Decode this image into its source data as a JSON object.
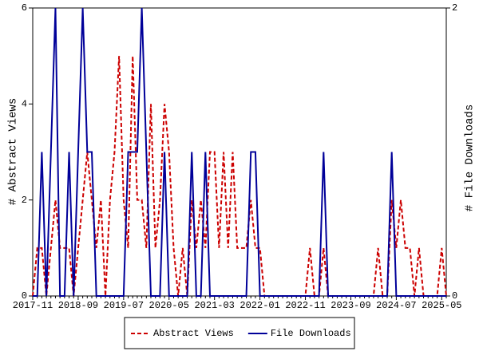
{
  "chart_data": {
    "type": "line",
    "categories": [
      "2017-11",
      null,
      null,
      null,
      null,
      null,
      null,
      null,
      null,
      null,
      "2018-09",
      null,
      null,
      null,
      null,
      null,
      null,
      null,
      null,
      null,
      "2019-07",
      null,
      null,
      null,
      null,
      null,
      null,
      null,
      null,
      null,
      "2020-05",
      null,
      null,
      null,
      null,
      null,
      null,
      null,
      null,
      null,
      "2021-03",
      null,
      null,
      null,
      null,
      null,
      null,
      null,
      null,
      null,
      "2022-01",
      null,
      null,
      null,
      null,
      null,
      null,
      null,
      null,
      null,
      "2022-11",
      null,
      null,
      null,
      null,
      null,
      null,
      null,
      null,
      null,
      "2023-09",
      null,
      null,
      null,
      null,
      null,
      null,
      null,
      null,
      null,
      "2024-07",
      null,
      null,
      null,
      null,
      null,
      null,
      null,
      null,
      null,
      "2025-05",
      null
    ],
    "series": [
      {
        "name": "Abstract Views",
        "color": "#cc0000",
        "dashed": true,
        "values": [
          0,
          1,
          1,
          0,
          1,
          2,
          1,
          1,
          1,
          0,
          1,
          2,
          3,
          2,
          1,
          2,
          0,
          2,
          3,
          5,
          2,
          1,
          5,
          2,
          2,
          1,
          4,
          1,
          2,
          4,
          3,
          1,
          0,
          1,
          0,
          2,
          1,
          2,
          1,
          3,
          3,
          1,
          3,
          1,
          3,
          1,
          1,
          1,
          2,
          1,
          1,
          0,
          0,
          0,
          0,
          0,
          0,
          0,
          0,
          0,
          0,
          1,
          0,
          0,
          1,
          0,
          0,
          0,
          0,
          0,
          0,
          0,
          0,
          0,
          0,
          0,
          1,
          0,
          0,
          2,
          1,
          2,
          1,
          1,
          0,
          1,
          0,
          0,
          0,
          0,
          1,
          0
        ]
      },
      {
        "name": "File Downloads",
        "color": "#000099",
        "axis": "y2",
        "values": [
          0,
          0,
          1,
          0,
          1,
          2,
          0,
          0,
          1,
          0,
          1,
          2,
          1,
          1,
          0,
          0,
          0,
          0,
          0,
          0,
          0,
          1,
          1,
          1,
          2,
          1,
          0,
          0,
          0,
          1,
          0,
          0,
          0,
          0,
          0,
          1,
          0,
          0,
          1,
          0,
          0,
          0,
          0,
          0,
          0,
          0,
          0,
          0,
          1,
          1,
          0,
          0,
          0,
          0,
          0,
          0,
          0,
          0,
          0,
          0,
          0,
          0,
          0,
          0,
          1,
          0,
          0,
          0,
          0,
          0,
          0,
          0,
          0,
          0,
          0,
          0,
          0,
          0,
          0,
          1,
          0,
          0,
          0,
          0,
          0,
          0,
          0,
          0,
          0,
          0,
          0,
          0
        ]
      }
    ],
    "ylabel": "# Abstract Views",
    "y2label": "# File Downloads",
    "ylim": [
      0,
      6
    ],
    "yticks": [
      0,
      2,
      4,
      6
    ],
    "y2lim": [
      0,
      2
    ],
    "y2ticks": [
      0,
      2
    ],
    "legend": "bottom"
  }
}
